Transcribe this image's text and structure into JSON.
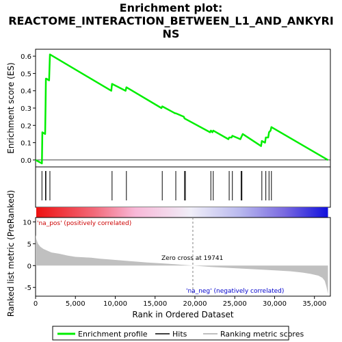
{
  "title_lines": [
    "Enrichment plot:",
    "REACTOME_INTERACTION_BETWEEN_L1_AND_ANKYRI",
    "NS"
  ],
  "colors": {
    "profile": "#00ee00",
    "hits": "#000000",
    "metric_fill": "#c0c0c0",
    "zero_line": "#808080",
    "pos_label": "#cc0000",
    "neg_label": "#0000cc",
    "heat_red": "#ee1111",
    "heat_blue": "#1111dd"
  },
  "legend": {
    "items": [
      {
        "label": "Enrichment profile",
        "kind": "profile"
      },
      {
        "label": "Hits",
        "kind": "hits"
      },
      {
        "label": "Ranking metric scores",
        "kind": "metric"
      }
    ]
  },
  "chart_data": [
    {
      "type": "line",
      "ylabel": "Enrichment score (ES)",
      "ylim": [
        -0.04,
        0.64
      ],
      "yticks": [
        "0.0",
        "0.1",
        "0.2",
        "0.3",
        "0.4",
        "0.5",
        "0.6"
      ],
      "xlim": [
        0,
        37000
      ],
      "grid": false,
      "series": [
        {
          "name": "Enrichment profile",
          "x": [
            0,
            800,
            850,
            1200,
            1250,
            1300,
            1350,
            1700,
            1800,
            9500,
            9600,
            11300,
            11400,
            15800,
            15900,
            17500,
            17600,
            18600,
            18700,
            21900,
            22000,
            22200,
            22300,
            24200,
            24300,
            24600,
            24700,
            25700,
            25800,
            25900,
            26000,
            28300,
            28400,
            28800,
            28900,
            29200,
            29300,
            29500,
            29600,
            36700
          ],
          "y": [
            0.0,
            -0.02,
            0.16,
            0.15,
            0.31,
            0.47,
            0.47,
            0.46,
            0.61,
            0.4,
            0.44,
            0.4,
            0.42,
            0.3,
            0.31,
            0.27,
            0.27,
            0.25,
            0.24,
            0.16,
            0.17,
            0.16,
            0.17,
            0.12,
            0.13,
            0.13,
            0.14,
            0.12,
            0.13,
            0.14,
            0.15,
            0.08,
            0.11,
            0.1,
            0.13,
            0.13,
            0.16,
            0.17,
            0.19,
            0.0
          ]
        }
      ]
    },
    {
      "type": "hits",
      "x": [
        800,
        1250,
        1300,
        1800,
        9600,
        11400,
        15900,
        17600,
        18700,
        18800,
        22000,
        22300,
        24300,
        24700,
        25800,
        25900,
        28400,
        28900,
        29300,
        29600
      ]
    },
    {
      "type": "area",
      "title": "Ranked list metric (PreRanked)",
      "xlabel": "Rank in Ordered Dataset",
      "ylabel": "Ranked list metric (PreRanked)",
      "ylim": [
        -7,
        11
      ],
      "yticks": [
        "-5",
        "0",
        "5",
        "10"
      ],
      "xlim": [
        0,
        37000
      ],
      "xticks": [
        "0",
        "5,000",
        "10,000",
        "15,000",
        "20,000",
        "25,000",
        "30,000",
        "35,000"
      ],
      "x": [
        0,
        100,
        300,
        600,
        1000,
        1500,
        2000,
        3000,
        4000,
        5000,
        6000,
        7000,
        8000,
        10000,
        12000,
        14000,
        16000,
        18000,
        19741,
        22000,
        25000,
        28000,
        30000,
        32000,
        33500,
        34500,
        35500,
        36000,
        36300,
        36500,
        36700
      ],
      "values": [
        7.0,
        6.0,
        5.0,
        4.3,
        3.8,
        3.4,
        3.0,
        2.7,
        2.3,
        2.0,
        1.9,
        1.8,
        1.6,
        1.3,
        1.0,
        0.7,
        0.5,
        0.25,
        0.0,
        -0.3,
        -0.6,
        -0.9,
        -1.1,
        -1.3,
        -1.6,
        -1.9,
        -2.3,
        -2.8,
        -3.5,
        -4.8,
        -6.5
      ],
      "annotations": [
        "'na_pos' (positively correlated)",
        "Zero cross at 19741",
        "'na_neg' (negatively correlated)"
      ]
    }
  ]
}
